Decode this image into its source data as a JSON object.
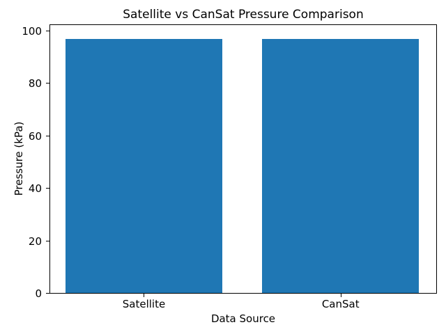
{
  "chart_data": {
    "type": "bar",
    "title": "Satellite vs CanSat Pressure Comparison",
    "xlabel": "Data Source",
    "ylabel": "Pressure (kPa)",
    "categories": [
      "Satellite",
      "CanSat"
    ],
    "values": [
      97.4,
      97.4
    ],
    "bar_color": "#1f77b4",
    "axis_color": "#000000",
    "background_color": "#ffffff",
    "ylim": [
      0,
      102.6
    ],
    "yticks": [
      0,
      20,
      40,
      60,
      80,
      100
    ],
    "xlim": [
      -0.48,
      1.49
    ],
    "bar_width_fraction": 0.8,
    "grid": false,
    "legend_position": "none"
  }
}
